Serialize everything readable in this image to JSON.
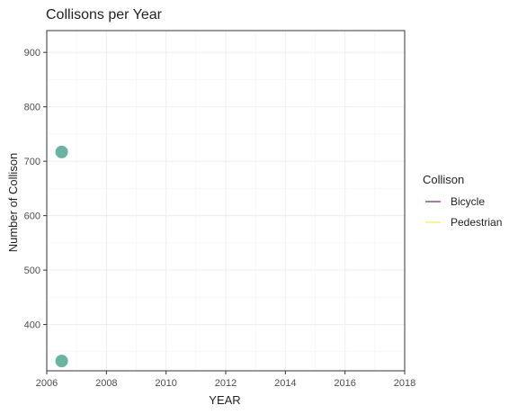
{
  "chart_data": {
    "type": "scatter",
    "title": "Collisons per Year",
    "xlabel": "YEAR",
    "ylabel": "Number of Collison",
    "xlim": [
      2006,
      2018
    ],
    "ylim": [
      315,
      940
    ],
    "x_ticks": [
      2006,
      2008,
      2010,
      2012,
      2014,
      2016,
      2018
    ],
    "y_ticks": [
      400,
      500,
      600,
      700,
      800,
      900
    ],
    "grid": true,
    "legend": {
      "title": "Collison",
      "position": "right",
      "entries": [
        {
          "label": "Bicycle",
          "color": "#440154"
        },
        {
          "label": "Pedestrian",
          "color": "#FDE725"
        }
      ]
    },
    "points": [
      {
        "x": 2006.5,
        "y": 717,
        "color": "#69B3A2"
      },
      {
        "x": 2006.5,
        "y": 333,
        "color": "#69B3A2"
      }
    ]
  }
}
